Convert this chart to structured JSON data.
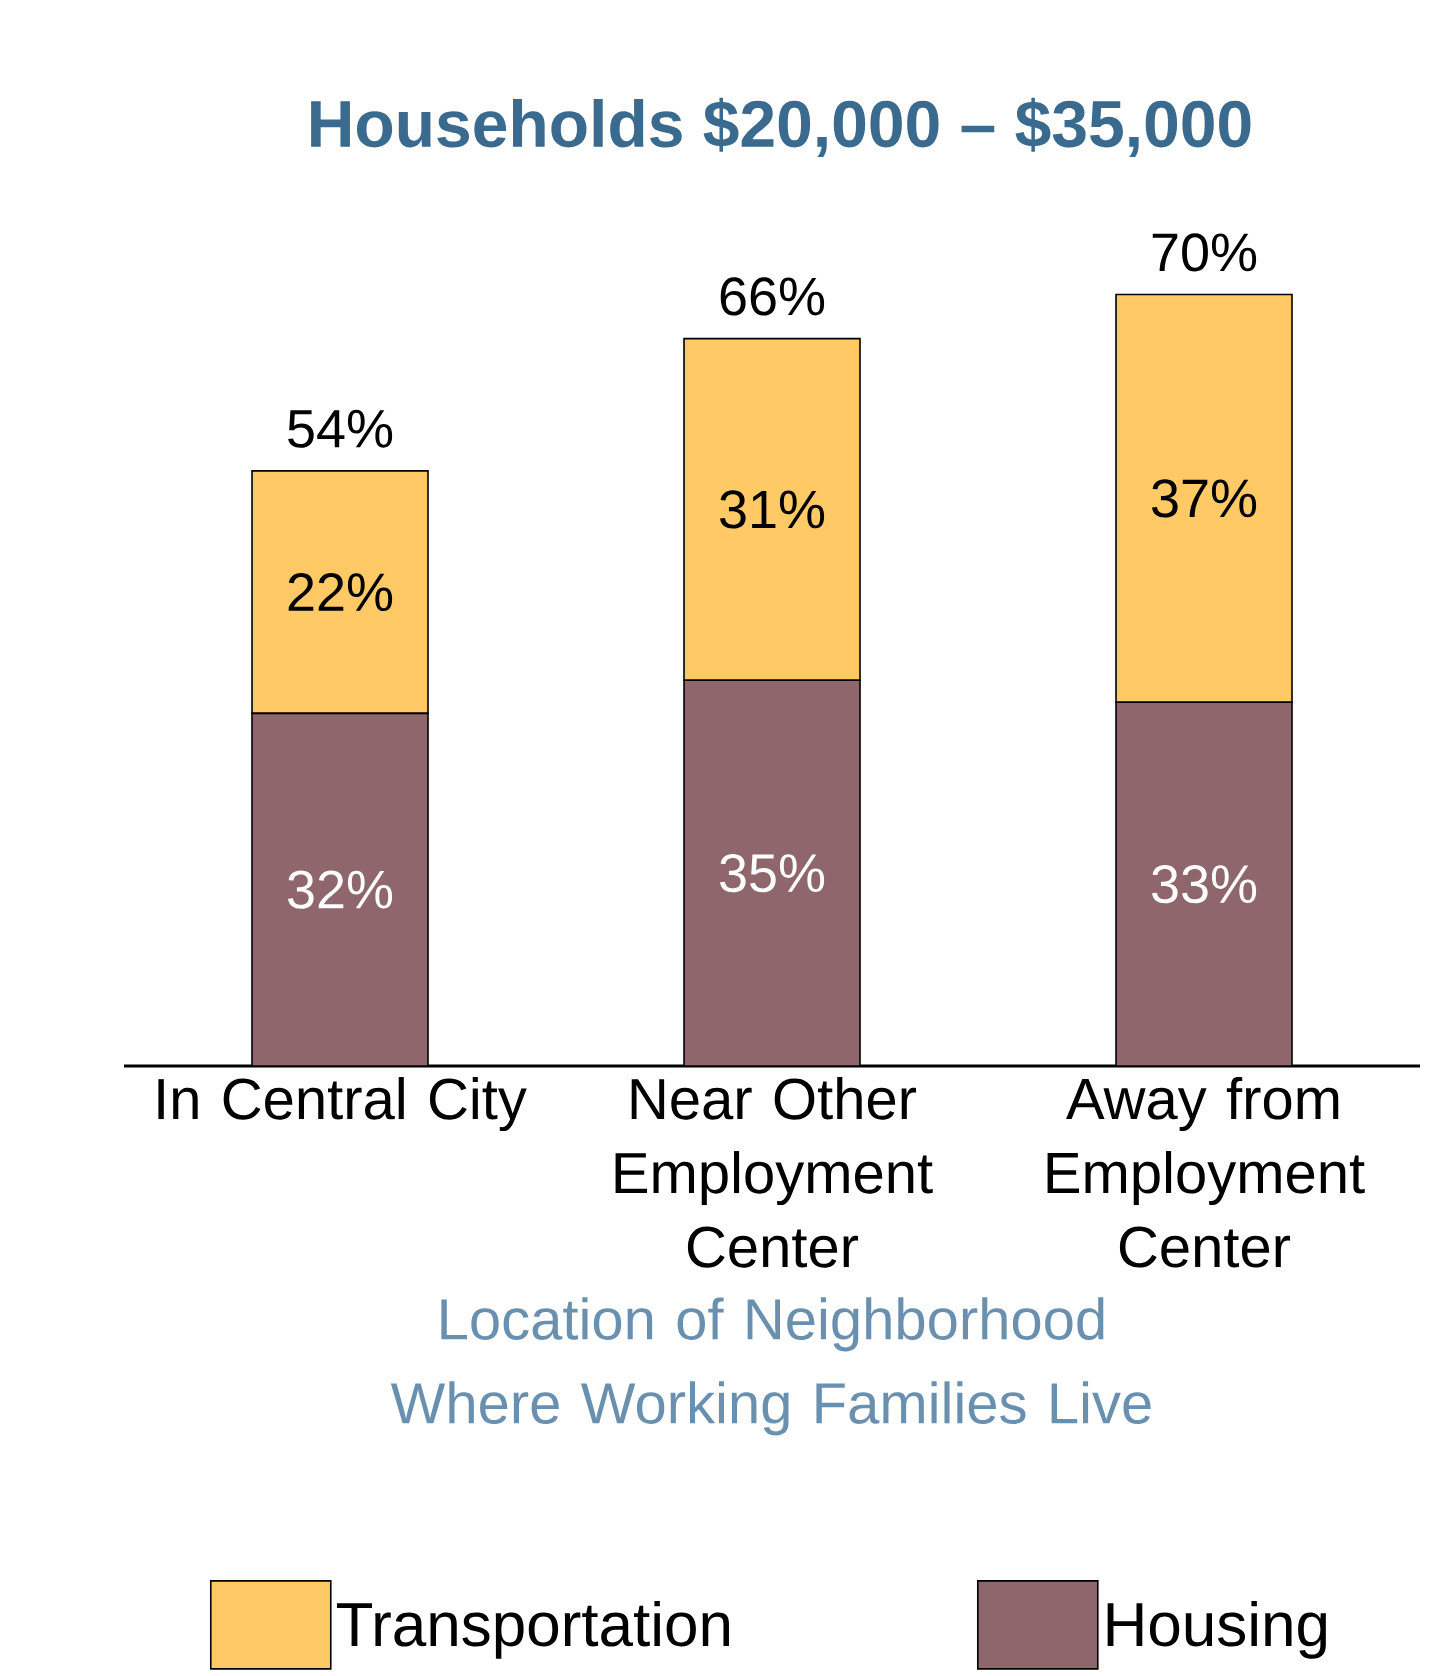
{
  "chart_data": {
    "type": "bar",
    "stacked": true,
    "title": "Households $20,000 – $35,000",
    "xlabel": "Location of Neighborhood Where Working Families Live",
    "categories": [
      "In Central City",
      "Near Other Employment Center",
      "Away from Employment Center"
    ],
    "series": [
      {
        "name": "Housing",
        "color": "#8e666b",
        "values": [
          32,
          35,
          33
        ],
        "value_labels": [
          "32%",
          "35%",
          "33%"
        ]
      },
      {
        "name": "Transportation",
        "color": "#ffc966",
        "values": [
          22,
          31,
          37
        ],
        "value_labels": [
          "22%",
          "31%",
          "37%"
        ]
      }
    ],
    "totals": [
      "54%",
      "66%",
      "70%"
    ],
    "legend": "bottom"
  }
}
